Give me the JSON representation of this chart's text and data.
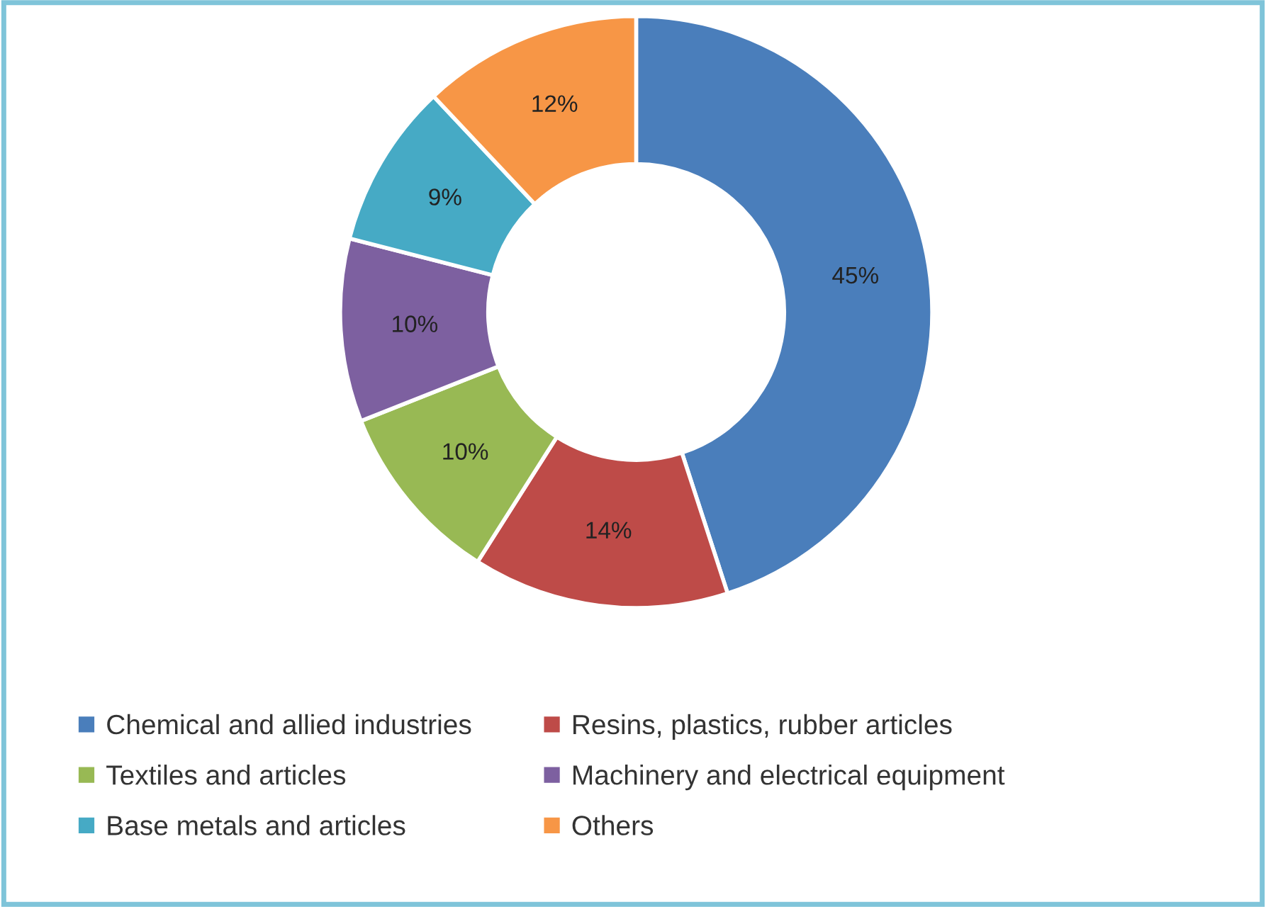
{
  "chart_data": {
    "type": "donut",
    "categories": [
      "Chemical and allied industries",
      "Resins, plastics, rubber articles",
      "Textiles and articles",
      "Machinery and electrical equipment",
      "Base metals and articles",
      "Others"
    ],
    "values": [
      45,
      14,
      10,
      10,
      9,
      12
    ],
    "colors": [
      "#4a7ebb",
      "#be4b48",
      "#98b954",
      "#7d60a0",
      "#46aac5",
      "#f79646"
    ],
    "value_labels": [
      "45%",
      "14%",
      "10%",
      "10%",
      "9%",
      "12%"
    ],
    "legend": "bottom"
  }
}
